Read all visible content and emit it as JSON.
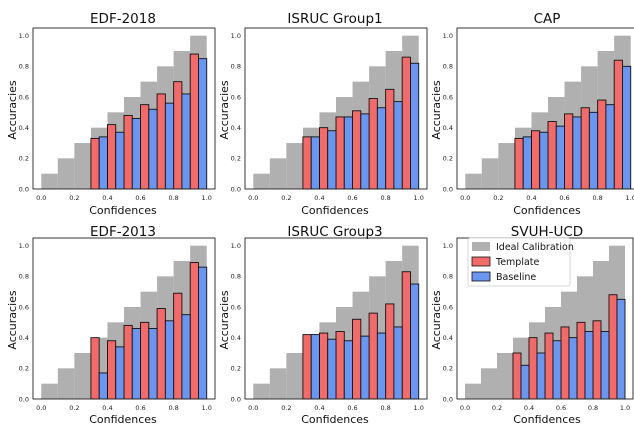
{
  "colors": {
    "ideal": "#b0b0b0",
    "template": "#f26b6b",
    "baseline": "#6a96f0",
    "edge": "#111111"
  },
  "legend": {
    "panel": 5,
    "entries": [
      {
        "key": "ideal",
        "label": "Ideal Calibration"
      },
      {
        "key": "template",
        "label": "Template"
      },
      {
        "key": "baseline",
        "label": "Baseline"
      }
    ]
  },
  "chart_data": [
    {
      "type": "bar",
      "title": "EDF-2018",
      "xlabel": "Confidences",
      "ylabel": "Accuracies",
      "xlim": [
        -0.05,
        1.05
      ],
      "ylim": [
        0,
        1.05
      ],
      "xticks": [
        "0.0",
        "0.2",
        "0.4",
        "0.6",
        "0.8",
        "1.0"
      ],
      "yticks": [
        "0.0",
        "0.2",
        "0.4",
        "0.6",
        "0.8",
        "1.0"
      ],
      "bin_width": 0.1,
      "ideal": [
        0.1,
        0.2,
        0.3,
        0.4,
        0.5,
        0.6,
        0.7,
        0.8,
        0.9,
        1.0
      ],
      "template": [
        null,
        null,
        null,
        0.33,
        0.42,
        0.48,
        0.55,
        0.62,
        0.7,
        0.88
      ],
      "baseline": [
        null,
        null,
        null,
        0.34,
        0.37,
        0.46,
        0.52,
        0.56,
        0.62,
        0.85
      ]
    },
    {
      "type": "bar",
      "title": "ISRUC Group1",
      "xlabel": "Confidences",
      "ylabel": "Accuracies",
      "xlim": [
        -0.05,
        1.05
      ],
      "ylim": [
        0,
        1.05
      ],
      "xticks": [
        "0.0",
        "0.2",
        "0.4",
        "0.6",
        "0.8",
        "1.0"
      ],
      "yticks": [
        "0.0",
        "0.2",
        "0.4",
        "0.6",
        "0.8",
        "1.0"
      ],
      "bin_width": 0.1,
      "ideal": [
        0.1,
        0.2,
        0.3,
        0.4,
        0.5,
        0.6,
        0.7,
        0.8,
        0.9,
        1.0
      ],
      "template": [
        null,
        null,
        null,
        0.34,
        0.4,
        0.47,
        0.51,
        0.59,
        0.65,
        0.86
      ],
      "baseline": [
        null,
        null,
        null,
        0.34,
        0.38,
        0.47,
        0.49,
        0.53,
        0.57,
        0.82
      ]
    },
    {
      "type": "bar",
      "title": "CAP",
      "xlabel": "Confidences",
      "ylabel": "Accuracies",
      "xlim": [
        -0.05,
        1.05
      ],
      "ylim": [
        0,
        1.05
      ],
      "xticks": [
        "0.0",
        "0.2",
        "0.4",
        "0.6",
        "0.8",
        "1.0"
      ],
      "yticks": [
        "0.0",
        "0.2",
        "0.4",
        "0.6",
        "0.8",
        "1.0"
      ],
      "bin_width": 0.1,
      "ideal": [
        0.1,
        0.2,
        0.3,
        0.4,
        0.5,
        0.6,
        0.7,
        0.8,
        0.9,
        1.0
      ],
      "template": [
        null,
        null,
        null,
        0.33,
        0.38,
        0.44,
        0.49,
        0.53,
        0.58,
        0.84
      ],
      "baseline": [
        null,
        null,
        null,
        0.34,
        0.37,
        0.41,
        0.47,
        0.5,
        0.55,
        0.8
      ]
    },
    {
      "type": "bar",
      "title": "EDF-2013",
      "xlabel": "Confidences",
      "ylabel": "Accuracies",
      "xlim": [
        -0.05,
        1.05
      ],
      "ylim": [
        0,
        1.05
      ],
      "xticks": [
        "0.0",
        "0.2",
        "0.4",
        "0.6",
        "0.8",
        "1.0"
      ],
      "yticks": [
        "0.0",
        "0.2",
        "0.4",
        "0.6",
        "0.8",
        "1.0"
      ],
      "bin_width": 0.1,
      "ideal": [
        0.1,
        0.2,
        0.3,
        0.4,
        0.5,
        0.6,
        0.7,
        0.8,
        0.9,
        1.0
      ],
      "template": [
        null,
        null,
        null,
        0.4,
        0.38,
        0.48,
        0.5,
        0.59,
        0.69,
        0.89
      ],
      "baseline": [
        null,
        null,
        null,
        0.17,
        0.34,
        0.46,
        0.46,
        0.51,
        0.55,
        0.86
      ]
    },
    {
      "type": "bar",
      "title": "ISRUC Group3",
      "xlabel": "Confidences",
      "ylabel": "Accuracies",
      "xlim": [
        -0.05,
        1.05
      ],
      "ylim": [
        0,
        1.05
      ],
      "xticks": [
        "0.0",
        "0.2",
        "0.4",
        "0.6",
        "0.8",
        "1.0"
      ],
      "yticks": [
        "0.0",
        "0.2",
        "0.4",
        "0.6",
        "0.8",
        "1.0"
      ],
      "bin_width": 0.1,
      "ideal": [
        0.1,
        0.2,
        0.3,
        0.4,
        0.5,
        0.6,
        0.7,
        0.8,
        0.9,
        1.0
      ],
      "template": [
        null,
        null,
        null,
        0.42,
        0.43,
        0.44,
        0.52,
        0.56,
        0.62,
        0.83
      ],
      "baseline": [
        null,
        null,
        null,
        0.42,
        0.39,
        0.38,
        0.41,
        0.43,
        0.47,
        0.75
      ]
    },
    {
      "type": "bar",
      "title": "SVUH-UCD",
      "xlabel": "Confidences",
      "ylabel": "Accuracies",
      "xlim": [
        -0.05,
        1.05
      ],
      "ylim": [
        0,
        1.05
      ],
      "xticks": [
        "0.0",
        "0.2",
        "0.4",
        "0.6",
        "0.8",
        "1.0"
      ],
      "yticks": [
        "0.0",
        "0.2",
        "0.4",
        "0.6",
        "0.8",
        "1.0"
      ],
      "bin_width": 0.1,
      "ideal": [
        0.1,
        0.2,
        0.3,
        0.4,
        0.5,
        0.6,
        0.7,
        0.8,
        0.9,
        1.0
      ],
      "template": [
        null,
        null,
        null,
        0.3,
        0.4,
        0.43,
        0.47,
        0.5,
        0.51,
        0.68
      ],
      "baseline": [
        null,
        null,
        null,
        0.22,
        0.3,
        0.38,
        0.4,
        0.44,
        0.44,
        0.65
      ]
    }
  ]
}
